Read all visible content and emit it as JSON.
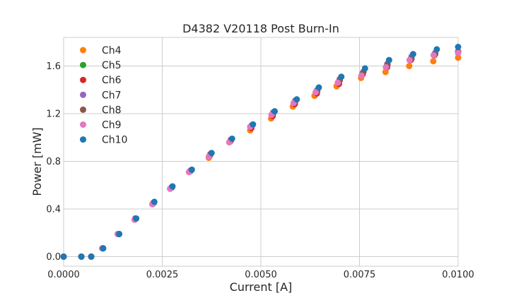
{
  "chart_data": {
    "type": "scatter",
    "title": "D4382 V20118 Post Burn-In",
    "xlabel": "Current [A]",
    "ylabel": "Power [mW]",
    "xlim": [
      0.0,
      0.01
    ],
    "ylim": [
      -0.08,
      1.84
    ],
    "xticks": [
      0.0,
      0.0025,
      0.005,
      0.0075,
      0.01
    ],
    "xtick_labels": [
      "0.0000",
      "0.0025",
      "0.0050",
      "0.0075",
      "0.0100"
    ],
    "yticks": [
      0.0,
      0.4,
      0.8,
      1.2,
      1.6
    ],
    "ytick_labels": [
      "0.0",
      "0.4",
      "0.8",
      "1.2",
      "1.6"
    ],
    "grid": true,
    "legend_position": "top-left",
    "series": [
      {
        "name": "Ch4",
        "color": "#ff7f0e",
        "x": [
          0.0,
          0.00045,
          0.0007,
          0.00098,
          0.00137,
          0.0018,
          0.00225,
          0.0027,
          0.00318,
          0.00368,
          0.0042,
          0.00473,
          0.00526,
          0.00581,
          0.00636,
          0.00692,
          0.00754,
          0.00816,
          0.00876,
          0.00937,
          0.01
        ],
        "y": [
          0.0,
          0.0,
          0.0,
          0.07,
          0.19,
          0.31,
          0.44,
          0.57,
          0.71,
          0.83,
          0.96,
          1.06,
          1.16,
          1.26,
          1.35,
          1.43,
          1.5,
          1.55,
          1.6,
          1.64,
          1.67
        ]
      },
      {
        "name": "Ch5",
        "color": "#2ca02c",
        "x": [
          0.0,
          0.00045,
          0.0007,
          0.001,
          0.0014,
          0.00182,
          0.00228,
          0.00274,
          0.00322,
          0.00372,
          0.00424,
          0.00476,
          0.0053,
          0.00586,
          0.00642,
          0.00698,
          0.00758,
          0.0082,
          0.0088,
          0.0094,
          0.01
        ],
        "y": [
          0.0,
          0.0,
          0.0,
          0.07,
          0.19,
          0.32,
          0.45,
          0.58,
          0.72,
          0.86,
          0.98,
          1.1,
          1.2,
          1.3,
          1.39,
          1.47,
          1.54,
          1.61,
          1.66,
          1.7,
          1.72
        ]
      },
      {
        "name": "Ch6",
        "color": "#d62728",
        "x": [
          0.0,
          0.00045,
          0.0007,
          0.001,
          0.0014,
          0.00182,
          0.00227,
          0.00273,
          0.00321,
          0.00371,
          0.00423,
          0.00476,
          0.0053,
          0.00586,
          0.00642,
          0.00698,
          0.00758,
          0.0082,
          0.0088,
          0.0094,
          0.01
        ],
        "y": [
          0.0,
          0.0,
          0.0,
          0.07,
          0.19,
          0.32,
          0.45,
          0.58,
          0.72,
          0.85,
          0.97,
          1.08,
          1.18,
          1.28,
          1.37,
          1.45,
          1.53,
          1.59,
          1.65,
          1.69,
          1.71
        ]
      },
      {
        "name": "Ch7",
        "color": "#9467bd",
        "x": [
          0.0,
          0.00045,
          0.0007,
          0.001,
          0.0014,
          0.00182,
          0.00228,
          0.00274,
          0.00322,
          0.00372,
          0.00424,
          0.00477,
          0.00531,
          0.00587,
          0.00643,
          0.007,
          0.0076,
          0.00821,
          0.00882,
          0.00942,
          0.01
        ],
        "y": [
          0.0,
          0.0,
          0.0,
          0.07,
          0.19,
          0.32,
          0.45,
          0.58,
          0.72,
          0.86,
          0.98,
          1.1,
          1.21,
          1.31,
          1.4,
          1.49,
          1.55,
          1.62,
          1.68,
          1.71,
          1.72
        ]
      },
      {
        "name": "Ch8",
        "color": "#8c564b",
        "x": [
          0.0,
          0.00045,
          0.0007,
          0.001,
          0.0014,
          0.00182,
          0.00228,
          0.00274,
          0.00322,
          0.00372,
          0.00424,
          0.00477,
          0.00531,
          0.00587,
          0.00643,
          0.007,
          0.0076,
          0.00821,
          0.00882,
          0.00942,
          0.01
        ],
        "y": [
          0.0,
          0.0,
          0.0,
          0.07,
          0.19,
          0.32,
          0.45,
          0.58,
          0.72,
          0.86,
          0.98,
          1.1,
          1.2,
          1.3,
          1.39,
          1.48,
          1.55,
          1.61,
          1.66,
          1.7,
          1.72
        ]
      },
      {
        "name": "Ch9",
        "color": "#e377c2",
        "x": [
          0.0,
          0.00045,
          0.0007,
          0.00098,
          0.00137,
          0.0018,
          0.00225,
          0.0027,
          0.00318,
          0.00368,
          0.0042,
          0.00473,
          0.00527,
          0.00583,
          0.00639,
          0.00695,
          0.00755,
          0.00817,
          0.00877,
          0.00938,
          0.01
        ],
        "y": [
          0.0,
          0.0,
          0.0,
          0.07,
          0.19,
          0.31,
          0.44,
          0.57,
          0.71,
          0.84,
          0.96,
          1.09,
          1.19,
          1.29,
          1.38,
          1.46,
          1.52,
          1.59,
          1.65,
          1.69,
          1.71
        ]
      },
      {
        "name": "Ch10",
        "color": "#1f77b4",
        "x": [
          0.0,
          0.00045,
          0.0007,
          0.001,
          0.00141,
          0.00184,
          0.0023,
          0.00276,
          0.00325,
          0.00375,
          0.00427,
          0.0048,
          0.00535,
          0.00591,
          0.00647,
          0.00704,
          0.00764,
          0.00825,
          0.00886,
          0.00946,
          0.01
        ],
        "y": [
          0.0,
          0.0,
          0.0,
          0.07,
          0.19,
          0.32,
          0.46,
          0.59,
          0.73,
          0.87,
          0.99,
          1.11,
          1.22,
          1.32,
          1.42,
          1.51,
          1.58,
          1.65,
          1.7,
          1.74,
          1.76
        ]
      }
    ]
  }
}
